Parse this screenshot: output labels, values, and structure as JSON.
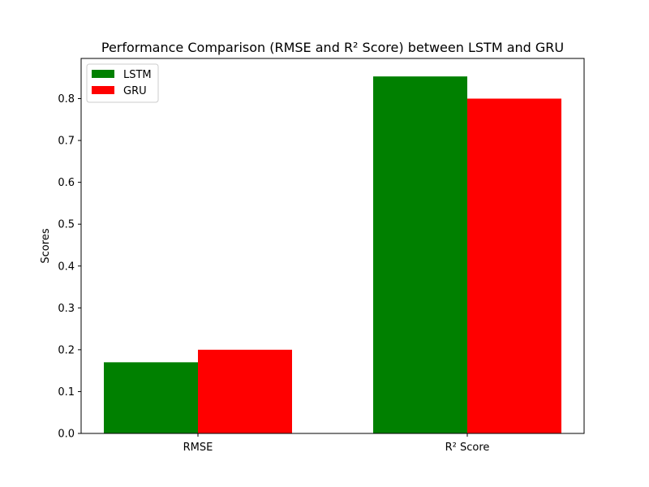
{
  "chart_data": {
    "type": "bar",
    "title": "Performance Comparison (RMSE and R² Score) between LSTM and GRU",
    "xlabel": "",
    "ylabel": "Scores",
    "categories": [
      "RMSE",
      "R² Score"
    ],
    "series": [
      {
        "name": "LSTM",
        "color": "#008000",
        "values": [
          0.17,
          0.853
        ]
      },
      {
        "name": "GRU",
        "color": "#ff0000",
        "values": [
          0.2,
          0.8
        ]
      }
    ],
    "ylim": [
      0,
      0.896
    ],
    "yticks": [
      0.0,
      0.1,
      0.2,
      0.3,
      0.4,
      0.5,
      0.6,
      0.7,
      0.8
    ],
    "ytick_labels": [
      "0.0",
      "0.1",
      "0.2",
      "0.3",
      "0.4",
      "0.5",
      "0.6",
      "0.7",
      "0.8"
    ],
    "grid": false,
    "legend_position": "top-left"
  }
}
